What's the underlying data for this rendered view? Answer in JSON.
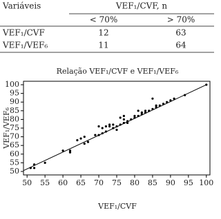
{
  "table": {
    "header": [
      "Variáveis",
      "VEF₁/CVF, n"
    ],
    "subheader": [
      "< 70%",
      "> 70%"
    ],
    "rows": [
      [
        "VEF₁/CVF",
        12,
        63
      ],
      [
        "VEF₁/VEF₆",
        11,
        64
      ]
    ]
  },
  "chart_data": {
    "type": "scatter",
    "title": "Relação VEF₁/CVF e VEF₁/VEF₆",
    "x_label": "VEF₁/CVF",
    "y_label": "VEF₁/VEF₆",
    "color": "#000000",
    "x": [
      51,
      52,
      52,
      55,
      60,
      62,
      62,
      64,
      65,
      66,
      66,
      67,
      69,
      70,
      70,
      71,
      71,
      72,
      72,
      73,
      73,
      74,
      74,
      75,
      75,
      76,
      76,
      77,
      77,
      77,
      78,
      78,
      79,
      80,
      80,
      81,
      81,
      82,
      82,
      83,
      83,
      84,
      85,
      85,
      86,
      86,
      87,
      88,
      89,
      90,
      91,
      94,
      100
    ],
    "values": [
      52,
      52,
      54,
      55,
      62,
      61,
      62,
      68,
      69,
      70,
      66,
      67,
      71,
      71,
      76,
      75,
      72,
      76,
      73,
      77,
      76,
      77,
      75,
      76,
      74,
      77,
      81,
      78,
      82,
      80,
      78,
      79,
      80,
      81,
      82,
      85,
      82,
      83,
      84,
      84,
      85,
      85,
      86,
      92,
      87,
      88,
      88,
      89,
      90,
      91,
      92,
      94,
      100
    ],
    "fit_line": {
      "x": [
        49,
        100
      ],
      "y": [
        50.5,
        100
      ]
    },
    "xlim": [
      49,
      101
    ],
    "ylim": [
      48,
      102
    ],
    "xticks": [
      50,
      55,
      60,
      65,
      70,
      75,
      80,
      85,
      90,
      95,
      100
    ],
    "yticks": [
      50,
      55,
      60,
      65,
      70,
      75,
      80,
      85,
      90,
      95,
      100
    ]
  }
}
